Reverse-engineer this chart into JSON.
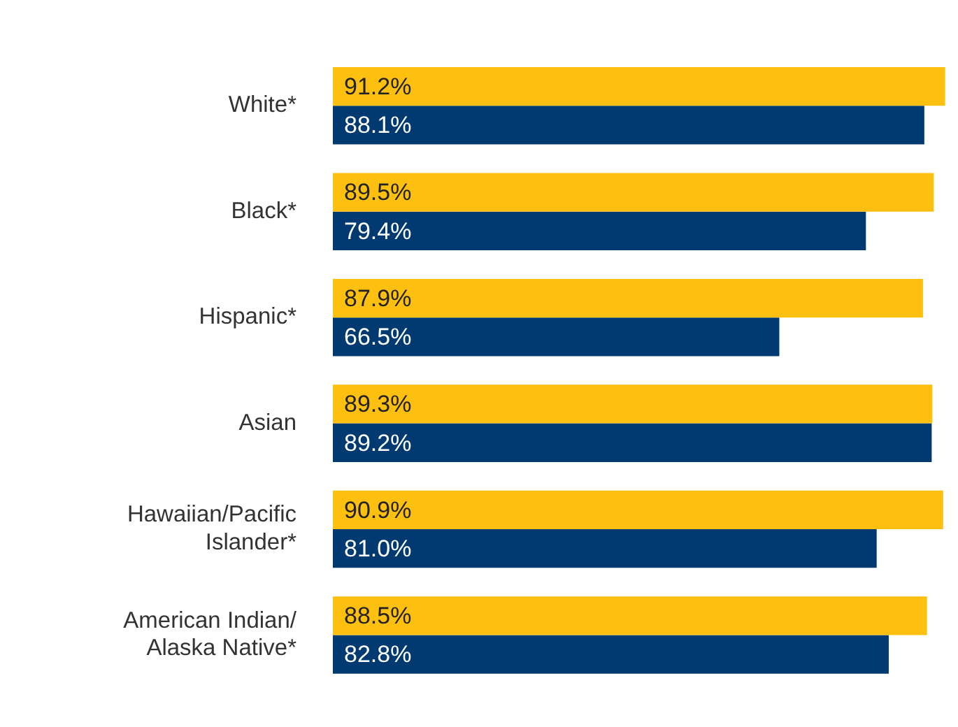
{
  "chart_data": {
    "type": "bar",
    "orientation": "horizontal",
    "categories": [
      "White*",
      "Black*",
      "Hispanic*",
      "Asian",
      "Hawaiian/Pacific Islander*",
      "American Indian/ Alaska Native*"
    ],
    "series": [
      {
        "color": "#fdc010",
        "values": [
          91.2,
          89.5,
          87.9,
          89.3,
          90.9,
          88.5
        ],
        "value_labels": [
          "91.2%",
          "89.5%",
          "87.9%",
          "89.3%",
          "90.9%",
          "88.5%"
        ]
      },
      {
        "color": "#003a70",
        "values": [
          88.1,
          79.4,
          66.5,
          89.2,
          81.0,
          82.8
        ],
        "value_labels": [
          "88.1%",
          "79.4%",
          "66.5%",
          "89.2%",
          "81.0%",
          "82.8%"
        ]
      }
    ],
    "legend": false,
    "tick_labels": "y"
  }
}
